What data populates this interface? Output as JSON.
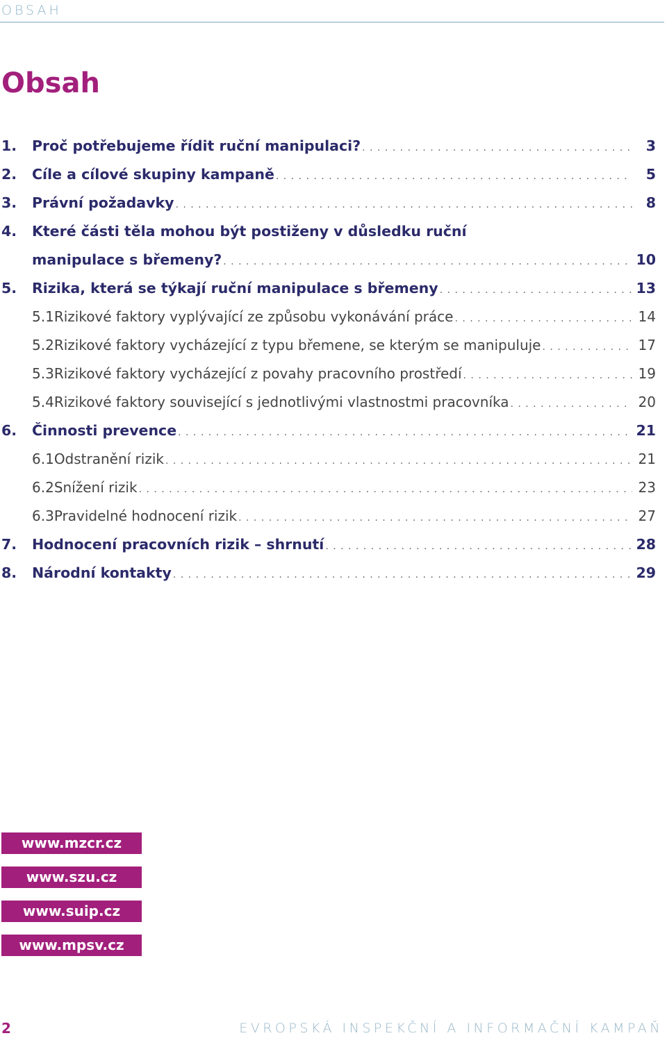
{
  "header": {
    "label": "OBSAH"
  },
  "title": "Obsah",
  "toc": [
    {
      "num": "1.",
      "title": "Proč potřebujeme řídit ruční manipulaci?",
      "page": "3",
      "level": "major"
    },
    {
      "num": "2.",
      "title": "Cíle a cílové skupiny kampaně",
      "page": "5",
      "level": "major"
    },
    {
      "num": "3.",
      "title": "Právní požadavky",
      "page": "8",
      "level": "major"
    },
    {
      "num": "4.",
      "title": "Které části těla mohou být postiženy v důsledku ruční",
      "page": "",
      "level": "major"
    },
    {
      "num": "",
      "title": "manipulace s břemeny?",
      "page": "10",
      "level": "major"
    },
    {
      "num": "5.",
      "title": "Rizika, která se týkají ruční manipulace s břemeny",
      "page": "13",
      "level": "major"
    },
    {
      "num": "5.1",
      "title": "Rizikové faktory vyplývající ze způsobu vykonávání práce",
      "page": "14",
      "level": "minor"
    },
    {
      "num": "5.2",
      "title": "Rizikové faktory vycházející z typu břemene, se kterým se manipuluje",
      "page": "17",
      "level": "minor"
    },
    {
      "num": "5.3",
      "title": "Rizikové faktory vycházející z povahy pracovního prostředí",
      "page": "19",
      "level": "minor"
    },
    {
      "num": "5.4",
      "title": "Rizikové faktory související s jednotlivými vlastnostmi pracovníka",
      "page": "20",
      "level": "minor"
    },
    {
      "num": "6.",
      "title": "Činnosti prevence",
      "page": "21",
      "level": "major"
    },
    {
      "num": "6.1",
      "title": "Odstranění rizik",
      "page": "21",
      "level": "minor"
    },
    {
      "num": "6.2",
      "title": "Snížení rizik",
      "page": "23",
      "level": "minor"
    },
    {
      "num": "6.3",
      "title": "Pravidelné hodnocení rizik",
      "page": "27",
      "level": "minor"
    },
    {
      "num": "7.",
      "title": "Hodnocení pracovních rizik – shrnutí",
      "page": "28",
      "level": "major"
    },
    {
      "num": "8.",
      "title": "Národní kontakty",
      "page": "29",
      "level": "major"
    }
  ],
  "links": [
    "www.mzcr.cz",
    "www.szu.cz",
    "www.suip.cz",
    "www.mpsv.cz"
  ],
  "footer": {
    "page_number": "2",
    "campaign": "EVROPSKÁ INSPEKČNÍ A INFORMAČNÍ KAMPAŇ"
  },
  "colors": {
    "accent": "#a21f7c",
    "heading": "#2b2a6a",
    "header_rule": "#b9d1dd"
  }
}
